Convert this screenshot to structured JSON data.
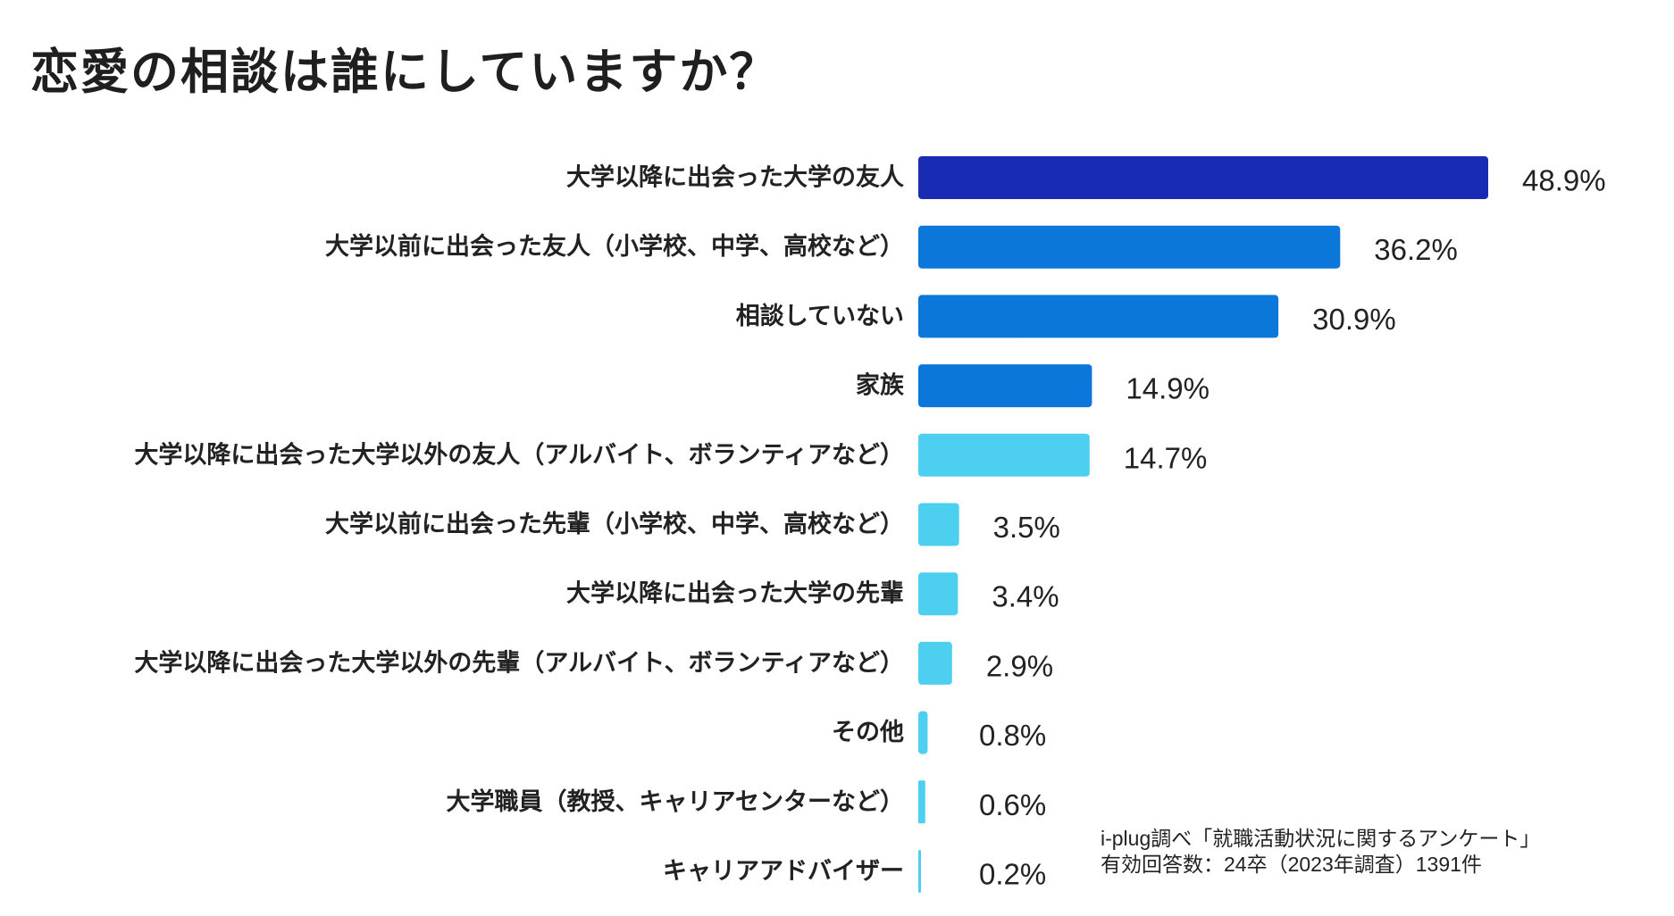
{
  "chart_data": {
    "type": "bar",
    "orientation": "horizontal",
    "title": "恋愛の相談は誰にしていますか？",
    "categories": [
      "大学以降に出会った大学の友人",
      "大学以前に出会った友人（小学校、中学、高校など）",
      "相談していない",
      "家族",
      "大学以降に出会った大学以外の友人（アルバイト、ボランティアなど）",
      "大学以前に出会った先輩（小学校、中学、高校など）",
      "大学以降に出会った大学の先輩",
      "大学以降に出会った大学以外の先輩（アルバイト、ボランティアなど）",
      "その他",
      "大学職員（教授、キャリアセンターなど）",
      "キャリアアドバイザー"
    ],
    "values": [
      48.9,
      36.2,
      30.9,
      14.9,
      14.7,
      3.5,
      3.4,
      2.9,
      0.8,
      0.6,
      0.2
    ],
    "value_labels": [
      "48.9%",
      "36.2%",
      "30.9%",
      "14.9%",
      "14.7%",
      "3.5%",
      "3.4%",
      "2.9%",
      "0.8%",
      "0.6%",
      "0.2%"
    ],
    "colors": [
      "#1a2bb3",
      "#0b77db",
      "#0b77db",
      "#0b77db",
      "#4dd0f0",
      "#4dd0f0",
      "#4dd0f0",
      "#4dd0f0",
      "#4dd0f0",
      "#4dd0f0",
      "#4dd0f0"
    ],
    "xlim": [
      0,
      50
    ],
    "xlabel": "",
    "ylabel": "",
    "grid": false
  },
  "source": {
    "line1": "i-plug調べ「就職活動状況に関するアンケート」",
    "line2": "有効回答数：24卒（2023年調査）1391件"
  }
}
